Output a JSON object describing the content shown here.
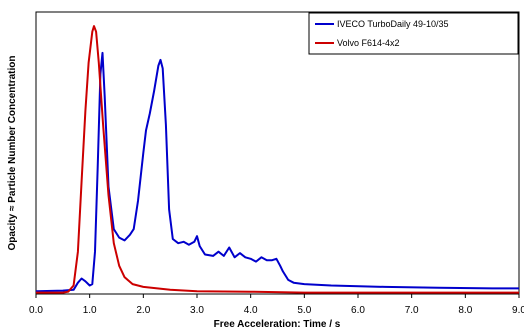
{
  "chart_data": {
    "type": "line",
    "title": "",
    "xlabel": "Free Acceleration: Time / s",
    "ylabel": "Opacity ≈ Particle Number Concentration",
    "xlim": [
      0,
      9
    ],
    "ylim": [
      0,
      1
    ],
    "x_ticks": [
      "0.0",
      "1.0",
      "2.0",
      "3.0",
      "4.0",
      "5.0",
      "6.0",
      "7.0",
      "8.0",
      "9.0"
    ],
    "y_ticks_visible": false,
    "grid": false,
    "legend_position": "top-right",
    "series": [
      {
        "name": "IVECO TurboDaily 49-10/35",
        "color": "#0000cc",
        "points": [
          [
            0,
            0.01
          ],
          [
            0.5,
            0.012
          ],
          [
            0.7,
            0.015
          ],
          [
            0.78,
            0.04
          ],
          [
            0.85,
            0.055
          ],
          [
            0.92,
            0.045
          ],
          [
            1.0,
            0.03
          ],
          [
            1.05,
            0.035
          ],
          [
            1.1,
            0.15
          ],
          [
            1.15,
            0.45
          ],
          [
            1.2,
            0.78
          ],
          [
            1.24,
            0.855
          ],
          [
            1.28,
            0.7
          ],
          [
            1.35,
            0.38
          ],
          [
            1.45,
            0.23
          ],
          [
            1.55,
            0.2
          ],
          [
            1.65,
            0.19
          ],
          [
            1.75,
            0.21
          ],
          [
            1.82,
            0.23
          ],
          [
            1.9,
            0.33
          ],
          [
            2.0,
            0.5
          ],
          [
            2.05,
            0.58
          ],
          [
            2.12,
            0.64
          ],
          [
            2.2,
            0.72
          ],
          [
            2.28,
            0.81
          ],
          [
            2.32,
            0.83
          ],
          [
            2.36,
            0.8
          ],
          [
            2.42,
            0.6
          ],
          [
            2.48,
            0.3
          ],
          [
            2.55,
            0.195
          ],
          [
            2.65,
            0.18
          ],
          [
            2.75,
            0.185
          ],
          [
            2.85,
            0.175
          ],
          [
            2.95,
            0.185
          ],
          [
            3.0,
            0.205
          ],
          [
            3.05,
            0.17
          ],
          [
            3.15,
            0.14
          ],
          [
            3.3,
            0.135
          ],
          [
            3.4,
            0.15
          ],
          [
            3.5,
            0.135
          ],
          [
            3.6,
            0.165
          ],
          [
            3.7,
            0.13
          ],
          [
            3.8,
            0.145
          ],
          [
            3.9,
            0.13
          ],
          [
            4.0,
            0.125
          ],
          [
            4.1,
            0.115
          ],
          [
            4.2,
            0.13
          ],
          [
            4.3,
            0.12
          ],
          [
            4.4,
            0.12
          ],
          [
            4.48,
            0.125
          ],
          [
            4.55,
            0.1
          ],
          [
            4.6,
            0.08
          ],
          [
            4.7,
            0.05
          ],
          [
            4.8,
            0.04
          ],
          [
            5.0,
            0.035
          ],
          [
            5.5,
            0.03
          ],
          [
            6.5,
            0.025
          ],
          [
            7.5,
            0.022
          ],
          [
            8.5,
            0.02
          ],
          [
            9.0,
            0.02
          ]
        ]
      },
      {
        "name": "Volvo F614-4x2",
        "color": "#cc0000",
        "points": [
          [
            0,
            0.005
          ],
          [
            0.5,
            0.005
          ],
          [
            0.6,
            0.008
          ],
          [
            0.7,
            0.03
          ],
          [
            0.78,
            0.15
          ],
          [
            0.85,
            0.4
          ],
          [
            0.92,
            0.65
          ],
          [
            0.98,
            0.82
          ],
          [
            1.05,
            0.93
          ],
          [
            1.08,
            0.95
          ],
          [
            1.12,
            0.93
          ],
          [
            1.17,
            0.82
          ],
          [
            1.25,
            0.6
          ],
          [
            1.35,
            0.35
          ],
          [
            1.45,
            0.18
          ],
          [
            1.55,
            0.1
          ],
          [
            1.65,
            0.06
          ],
          [
            1.8,
            0.035
          ],
          [
            2.0,
            0.025
          ],
          [
            2.5,
            0.015
          ],
          [
            3.0,
            0.01
          ],
          [
            4.0,
            0.008
          ],
          [
            5.0,
            0.005
          ],
          [
            7.0,
            0.005
          ],
          [
            9.0,
            0.005
          ]
        ]
      }
    ]
  }
}
